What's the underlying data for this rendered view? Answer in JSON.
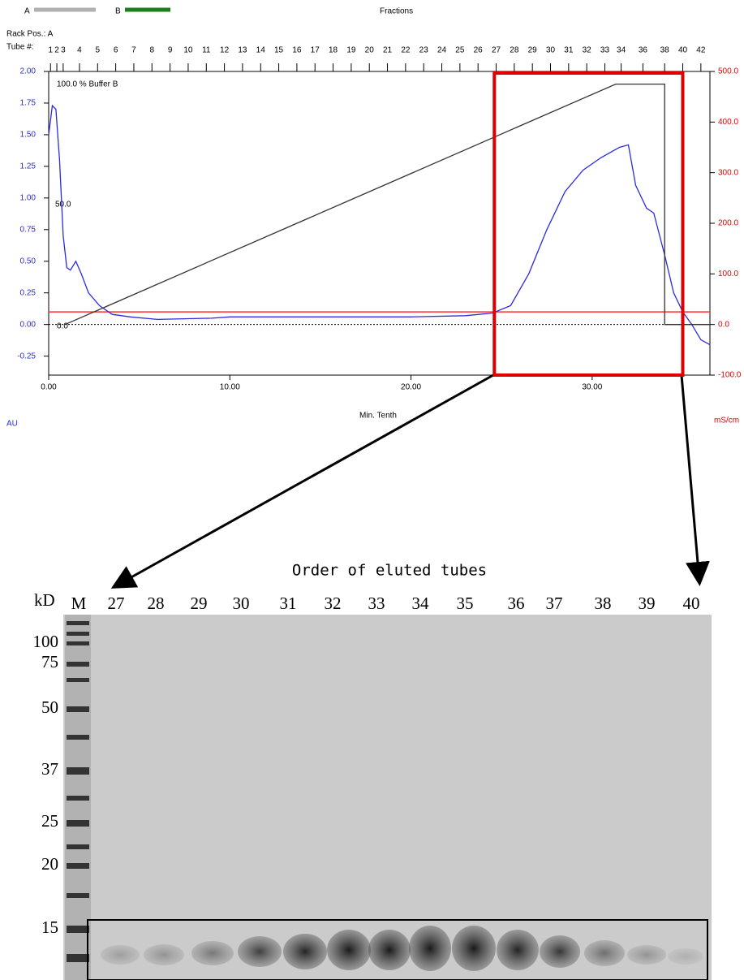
{
  "chart_data": {
    "type": "line",
    "header": "Fractions",
    "rack": "Rack Pos.: A",
    "tube_label": "Tube #:",
    "legend": [
      {
        "name": "A",
        "color": "#b0b0b0"
      },
      {
        "name": "B",
        "color": "#1a7f1a"
      }
    ],
    "x_label": "Min. Tenth",
    "y_label": "AU",
    "y2_label": "mS/cm",
    "annotations": [
      "100.0 % Buffer B",
      "50.0",
      "0.0"
    ],
    "xlim": [
      0,
      36.5
    ],
    "xticks": [
      {
        "value": 0,
        "label": "0.00"
      },
      {
        "value": 10,
        "label": "10.00"
      },
      {
        "value": 20,
        "label": "20.00"
      },
      {
        "value": 30,
        "label": "30.00"
      }
    ],
    "ylim": [
      -0.4,
      2.0
    ],
    "yticks": [
      {
        "value": 2,
        "label": "2.00"
      },
      {
        "value": 1.75,
        "label": "1.75"
      },
      {
        "value": 1.5,
        "label": "1.50"
      },
      {
        "value": 1.25,
        "label": "1.25"
      },
      {
        "value": 1,
        "label": "1.00"
      },
      {
        "value": 0.75,
        "label": "0.75"
      },
      {
        "value": 0.5,
        "label": "0.50"
      },
      {
        "value": 0.25,
        "label": "0.25"
      },
      {
        "value": 0,
        "label": "0.00"
      },
      {
        "value": -0.25,
        "label": "-0.25"
      }
    ],
    "y2lim": [
      -100,
      500
    ],
    "y2ticks": [
      {
        "value": 500,
        "label": "500.0"
      },
      {
        "value": 400,
        "label": "400.0"
      },
      {
        "value": 300,
        "label": "300.0"
      },
      {
        "value": 200,
        "label": "200.0"
      },
      {
        "value": 100,
        "label": "100.0"
      },
      {
        "value": 0,
        "label": "0.0"
      },
      {
        "value": -100,
        "label": "-100.0"
      }
    ],
    "x2ticks": [
      {
        "value": 0.1,
        "label": "1"
      },
      {
        "value": 0.45,
        "label": "2"
      },
      {
        "value": 0.8,
        "label": "3"
      },
      {
        "value": 1.7,
        "label": "4"
      },
      {
        "value": 2.7,
        "label": "5"
      },
      {
        "value": 3.7,
        "label": "6"
      },
      {
        "value": 4.7,
        "label": "7"
      },
      {
        "value": 5.7,
        "label": "8"
      },
      {
        "value": 6.7,
        "label": "9"
      },
      {
        "value": 7.7,
        "label": "10"
      },
      {
        "value": 8.7,
        "label": "11"
      },
      {
        "value": 9.7,
        "label": "12"
      },
      {
        "value": 10.7,
        "label": "13"
      },
      {
        "value": 11.7,
        "label": "14"
      },
      {
        "value": 12.7,
        "label": "15"
      },
      {
        "value": 13.7,
        "label": "16"
      },
      {
        "value": 14.7,
        "label": "17"
      },
      {
        "value": 15.7,
        "label": "18"
      },
      {
        "value": 16.7,
        "label": "19"
      },
      {
        "value": 17.7,
        "label": "20"
      },
      {
        "value": 18.7,
        "label": "21"
      },
      {
        "value": 19.7,
        "label": "22"
      },
      {
        "value": 20.7,
        "label": "23"
      },
      {
        "value": 21.7,
        "label": "24"
      },
      {
        "value": 22.7,
        "label": "25"
      },
      {
        "value": 23.7,
        "label": "26"
      },
      {
        "value": 24.7,
        "label": "27"
      },
      {
        "value": 25.7,
        "label": "28"
      },
      {
        "value": 26.7,
        "label": "29"
      },
      {
        "value": 27.7,
        "label": "30"
      },
      {
        "value": 28.7,
        "label": "31"
      },
      {
        "value": 29.7,
        "label": "32"
      },
      {
        "value": 30.7,
        "label": "33"
      },
      {
        "value": 31.6,
        "label": "34"
      },
      {
        "value": 32.8,
        "label": "36"
      },
      {
        "value": 34.0,
        "label": "38"
      },
      {
        "value": 35.0,
        "label": "40"
      },
      {
        "value": 36.0,
        "label": "42"
      }
    ],
    "series": [
      {
        "color": "#2b2be0",
        "x": [
          0,
          0.2,
          0.4,
          0.6,
          0.8,
          1.0,
          1.2,
          1.5,
          1.8,
          2.2,
          2.8,
          3.5,
          4.5,
          6,
          9,
          10,
          20,
          23,
          24.5,
          25.5,
          26.5,
          27.5,
          28.5,
          29.5,
          30.5,
          31.5,
          32.0,
          32.4,
          33.0,
          33.4,
          34.0,
          34.5,
          35.0,
          35.5,
          36.0,
          36.5
        ],
        "values": [
          1.5,
          1.73,
          1.7,
          1.3,
          0.7,
          0.45,
          0.43,
          0.5,
          0.4,
          0.25,
          0.15,
          0.08,
          0.06,
          0.04,
          0.05,
          0.06,
          0.06,
          0.07,
          0.09,
          0.15,
          0.4,
          0.75,
          1.05,
          1.22,
          1.32,
          1.4,
          1.42,
          1.1,
          0.92,
          0.88,
          0.55,
          0.25,
          0.1,
          0,
          -0.12,
          -0.16
        ]
      },
      {
        "color": "#333333",
        "axis": "y2",
        "x": [
          0.9,
          31.3,
          34.0,
          34.0,
          36.5
        ],
        "values": [
          0,
          475,
          475,
          0,
          0
        ]
      }
    ],
    "threshold": 0.1,
    "threshold_color": "#ff3030",
    "highlight_x": [
      24.6,
      35.0
    ],
    "highlight_color": "#e00000"
  },
  "gel": {
    "title": "Order of eluted tubes",
    "unit": "kD",
    "marker_lane": "M",
    "lanes": [
      "27",
      "28",
      "29",
      "30",
      "31",
      "32",
      "33",
      "34",
      "35",
      "36",
      "37",
      "38",
      "39",
      "40"
    ],
    "markers": [
      "100",
      "75",
      "50",
      "37",
      "25",
      "20",
      "15"
    ]
  }
}
